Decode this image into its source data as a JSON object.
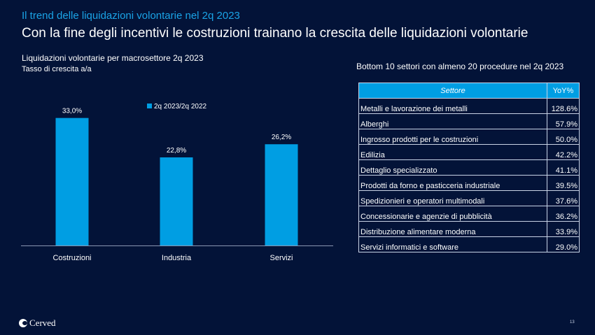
{
  "header": {
    "kicker": "Il trend delle liquidazioni volontarie nel 2q 2023",
    "headline": "Con la fine degli incentivi le costruzioni trainano la crescita delle liquidazioni volontarie"
  },
  "chart_data": {
    "type": "bar",
    "title": "Liquidazioni volontarie per macrosettore 2q 2023",
    "subtitle": "Tasso di crescita a/a",
    "categories": [
      "Costruzioni",
      "Industria",
      "Servizi"
    ],
    "series": [
      {
        "name": "2q 2023/2q 2022",
        "values": [
          33.0,
          22.8,
          26.2
        ],
        "labels": [
          "33,0%",
          "22,8%",
          "26,2%"
        ],
        "color": "#009ee3"
      }
    ],
    "ylim": [
      0,
      40
    ],
    "grid": false,
    "legend": "top-center"
  },
  "table": {
    "title": "Bottom 10 settori con almeno 20 procedure nel 2q 2023",
    "headers": [
      "Settore",
      "YoY%"
    ],
    "rows": [
      [
        "Metalli e lavorazione dei metalli",
        "128.6%"
      ],
      [
        "Alberghi",
        "57.9%"
      ],
      [
        "Ingrosso prodotti per le costruzioni",
        "50.0%"
      ],
      [
        "Edilizia",
        "42.2%"
      ],
      [
        "Dettaglio specializzato",
        "41.1%"
      ],
      [
        "Prodotti da forno e pasticceria industriale",
        "39.5%"
      ],
      [
        "Spedizionieri e operatori multimodali",
        "37.6%"
      ],
      [
        "Concessionarie e agenzie di pubblicità",
        "36.2%"
      ],
      [
        "Distribuzione alimentare moderna",
        "33.9%"
      ],
      [
        "Servizi informatici e software",
        "29.0%"
      ]
    ]
  },
  "footer": {
    "logo_text": "Cerved",
    "page_number": "13"
  },
  "colors": {
    "background": "#031338",
    "accent": "#009ee3",
    "kicker": "#1aa3e6"
  }
}
